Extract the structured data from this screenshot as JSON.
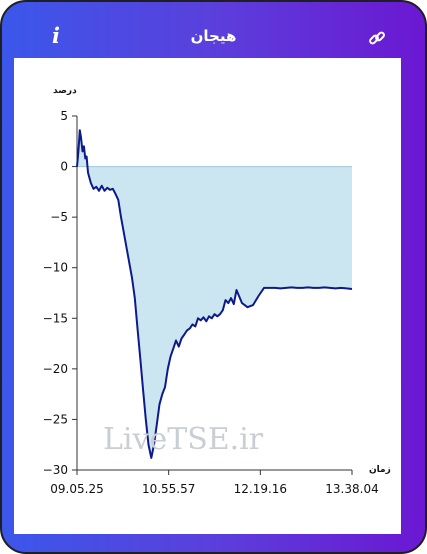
{
  "header": {
    "title": "هیجان",
    "info_icon": "info-icon",
    "link_icon": "link-icon"
  },
  "colors": {
    "gradient_start": "#3b57ea",
    "gradient_end": "#6b18d2",
    "line": "#0d1a8c",
    "area": "#cce6f1"
  },
  "watermark": "LiveTSE.ir",
  "chart_data": {
    "type": "area",
    "ylabel": "درصد",
    "xlabel": "زمان",
    "ylim": [
      -30,
      5
    ],
    "yticks": [
      5,
      0,
      -5,
      -10,
      -15,
      -20,
      -25,
      -30
    ],
    "ytick_labels": [
      "5",
      "0",
      "−5",
      "−10",
      "−15",
      "−20",
      "−25",
      "−30"
    ],
    "xticks": [
      "09.05.25",
      "10.55.57",
      "12.19.16",
      "13.38.04"
    ],
    "baseline": 0,
    "series": [
      {
        "x": [
          0,
          0.5,
          1,
          1.5,
          2,
          2.5,
          3,
          3.5,
          4,
          5,
          6,
          7,
          8,
          9,
          10,
          11,
          12,
          13,
          14,
          15,
          16,
          18,
          20,
          21,
          22,
          23,
          24,
          25,
          26,
          27,
          28,
          29,
          30,
          31,
          32,
          33,
          34,
          35,
          36,
          37,
          38,
          39,
          40,
          41,
          42,
          43,
          44,
          45,
          46,
          47,
          48,
          49,
          50,
          51,
          52,
          53,
          54,
          55,
          56,
          57,
          58,
          60,
          62,
          64,
          66,
          68,
          70,
          72,
          74,
          76,
          78,
          80,
          82,
          84,
          86,
          88,
          90,
          92,
          94,
          96,
          98,
          100
        ],
        "y": [
          0,
          1.5,
          3.6,
          2.8,
          1.5,
          2.0,
          0.8,
          1.0,
          -0.6,
          -1.6,
          -2.2,
          -2.0,
          -2.4,
          -1.9,
          -2.4,
          -2.1,
          -2.3,
          -2.2,
          -2.7,
          -3.3,
          -5.0,
          -8.0,
          -11.0,
          -13.0,
          -16.0,
          -19.0,
          -22.0,
          -25.0,
          -27.5,
          -28.8,
          -27.5,
          -25.5,
          -23.5,
          -22.5,
          -21.8,
          -20.0,
          -18.8,
          -18.0,
          -17.2,
          -17.8,
          -17.0,
          -16.6,
          -16.2,
          -16.0,
          -15.6,
          -15.8,
          -15.0,
          -15.2,
          -14.9,
          -15.3,
          -14.8,
          -15.0,
          -14.6,
          -14.8,
          -14.6,
          -14.2,
          -13.2,
          -13.5,
          -13.0,
          -13.6,
          -12.2,
          -13.5,
          -13.9,
          -13.7,
          -12.8,
          -12.0,
          -12.0,
          -12.0,
          -12.05,
          -12.0,
          -11.95,
          -12.0,
          -12.0,
          -11.95,
          -12.0,
          -12.0,
          -11.95,
          -12.0,
          -12.05,
          -12.0,
          -12.05,
          -12.1
        ]
      }
    ]
  }
}
